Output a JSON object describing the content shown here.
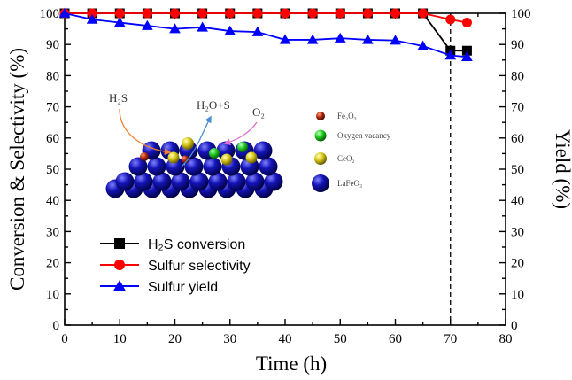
{
  "chart_data": {
    "type": "line",
    "xlabel": "Time (h)",
    "ylabel": "Conversion & Selectivity (%)",
    "y2label": "Yield (%)",
    "xlim": [
      0,
      80
    ],
    "ylim": [
      0,
      100
    ],
    "y2lim": [
      0,
      100
    ],
    "x_ticks": [
      "0",
      "10",
      "20",
      "30",
      "40",
      "50",
      "60",
      "70",
      "80"
    ],
    "y_ticks": [
      "0",
      "10",
      "20",
      "30",
      "40",
      "50",
      "60",
      "70",
      "80",
      "90",
      "100"
    ],
    "y2_ticks": [
      "0",
      "10",
      "20",
      "30",
      "40",
      "50",
      "60",
      "70",
      "80",
      "90",
      "100"
    ],
    "marker_line_x": 70,
    "legend_position": "lower-left",
    "series": [
      {
        "name": "H₂S conversion",
        "color": "#000000",
        "marker": "square",
        "x": [
          0,
          5,
          10,
          15,
          20,
          25,
          30,
          35,
          40,
          45,
          50,
          55,
          60,
          65,
          70,
          73
        ],
        "y": [
          100,
          100,
          100,
          100,
          100,
          100,
          100,
          100,
          100,
          100,
          100,
          100,
          100,
          100,
          88,
          88
        ]
      },
      {
        "name": "Sulfur selectivity",
        "color": "#ff0000",
        "marker": "circle",
        "x": [
          0,
          5,
          10,
          15,
          20,
          25,
          30,
          35,
          40,
          45,
          50,
          55,
          60,
          65,
          70,
          73
        ],
        "y": [
          100,
          100,
          100,
          100,
          100,
          100,
          100,
          100,
          100,
          100,
          100,
          100,
          100,
          100,
          98,
          97
        ]
      },
      {
        "name": "Sulfur yield",
        "color": "#0000ff",
        "marker": "triangle",
        "x": [
          0,
          5,
          10,
          15,
          20,
          25,
          30,
          35,
          40,
          45,
          50,
          55,
          60,
          65,
          70,
          73
        ],
        "y": [
          100,
          98,
          97,
          96,
          95,
          95.5,
          94.3,
          94,
          91.5,
          91.5,
          92,
          91.5,
          91.3,
          89.5,
          86.5,
          86
        ]
      }
    ],
    "inset": {
      "labels": {
        "h2s": "H₂S",
        "products": "H₂O+S",
        "o2": "O₂"
      },
      "legend": [
        {
          "label": "Fe₂O₃",
          "color": "#b22a10"
        },
        {
          "label": "Oxygen vacancy",
          "color": "#22cc22"
        },
        {
          "label": "CeO₂",
          "color": "#d8c820"
        },
        {
          "label": "LaFeO₃",
          "color": "#1010a8"
        }
      ]
    }
  }
}
